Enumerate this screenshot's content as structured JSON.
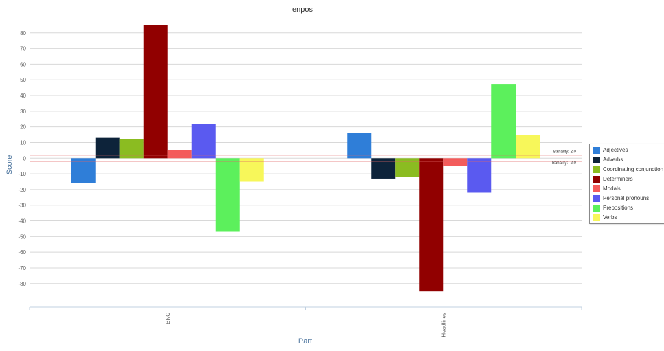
{
  "chart_data": {
    "type": "bar",
    "title": "enpos",
    "xlabel": "Part",
    "ylabel": "Score",
    "categories": [
      "BNC",
      "Headlines"
    ],
    "ylim": [
      -95,
      90
    ],
    "yticks": [
      -80,
      -70,
      -60,
      -50,
      -40,
      -30,
      -20,
      -10,
      0,
      10,
      20,
      30,
      40,
      50,
      60,
      70,
      80
    ],
    "grid": true,
    "legend_position": "right",
    "series": [
      {
        "name": "Adjectives",
        "color": "#2f7ed8",
        "values": [
          -16,
          16
        ]
      },
      {
        "name": "Adverbs",
        "color": "#0d233a",
        "values": [
          13,
          -13
        ]
      },
      {
        "name": "Coordinating conjunction",
        "color": "#8bbc21",
        "values": [
          12,
          -12
        ]
      },
      {
        "name": "Determiners",
        "color": "#910000",
        "values": [
          85,
          -85
        ]
      },
      {
        "name": "Modals",
        "color": "#f45b5b",
        "values": [
          5,
          -5
        ]
      },
      {
        "name": "Personal pronouns",
        "color": "#5a5af0",
        "values": [
          22,
          -22
        ]
      },
      {
        "name": "Prepositions",
        "color": "#5cf05c",
        "values": [
          -47,
          47
        ]
      },
      {
        "name": "Verbs",
        "color": "#f7f75a",
        "values": [
          -15,
          15
        ]
      }
    ],
    "plot_lines": [
      {
        "value": 2.0,
        "label": "Banality: 2.0",
        "color": "#e06666"
      },
      {
        "value": -2.0,
        "label": "Banality: -2.0",
        "color": "#e06666"
      }
    ]
  }
}
